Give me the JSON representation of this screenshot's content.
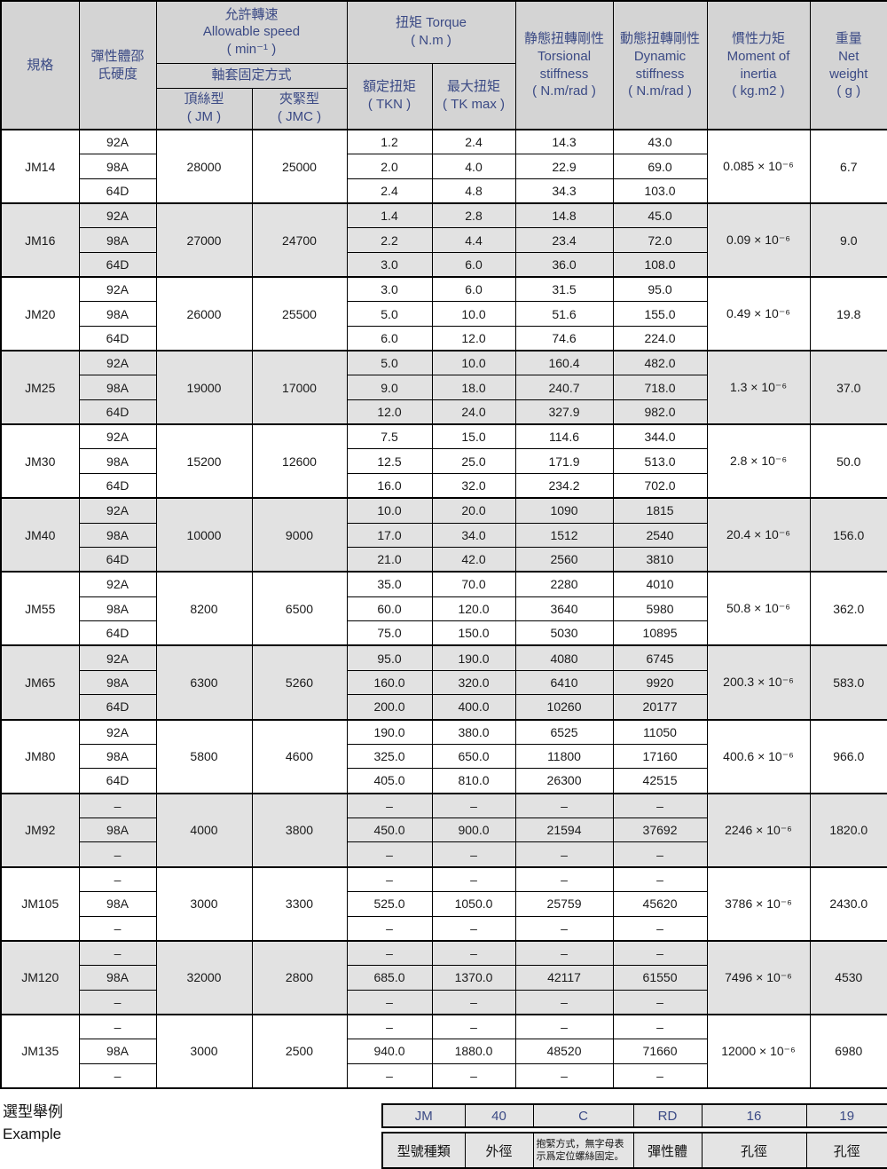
{
  "colors": {
    "header_text": "#3b4a85",
    "header_bg": "#d4d4d4",
    "band_bg": "#e2e2e2",
    "border": "#000000"
  },
  "header": {
    "spec": "規格",
    "hardness": "彈性體邵\n氏硬度",
    "speed_group": "允許轉速\nAllowable speed\n( min⁻¹ )",
    "fixation": "軸套固定方式",
    "jm_type": "頂絲型\n( JM )",
    "jmc_type": "夾緊型\n( JMC )",
    "torque_group": "扭矩  Torque\n( N.m )",
    "tkn": "額定扭矩\n( TKN )",
    "tkmax": "最大扭矩\n( TK max )",
    "torsional": "静態扭轉剛性\nTorsional\nstiffness\n( N.m/rad )",
    "dynamic": "動態扭轉剛性\nDynamic\nstiffness\n( N.m/rad )",
    "inertia": "慣性力矩\nMoment of\ninertia\n( kg.m2 )",
    "weight": "重量\nNet\nweight\n( g )"
  },
  "rows": [
    {
      "model": "JM14",
      "jm": "28000",
      "jmc": "25000",
      "inertia": "0.085 × 10⁻⁶",
      "weight": "6.7",
      "subs": [
        {
          "hard": "92A",
          "tkn": "1.2",
          "tkmax": "2.4",
          "ts": "14.3",
          "ds": "43.0"
        },
        {
          "hard": "98A",
          "tkn": "2.0",
          "tkmax": "4.0",
          "ts": "22.9",
          "ds": "69.0"
        },
        {
          "hard": "64D",
          "tkn": "2.4",
          "tkmax": "4.8",
          "ts": "34.3",
          "ds": "103.0"
        }
      ]
    },
    {
      "model": "JM16",
      "jm": "27000",
      "jmc": "24700",
      "inertia": "0.09 × 10⁻⁶",
      "weight": "9.0",
      "subs": [
        {
          "hard": "92A",
          "tkn": "1.4",
          "tkmax": "2.8",
          "ts": "14.8",
          "ds": "45.0"
        },
        {
          "hard": "98A",
          "tkn": "2.2",
          "tkmax": "4.4",
          "ts": "23.4",
          "ds": "72.0"
        },
        {
          "hard": "64D",
          "tkn": "3.0",
          "tkmax": "6.0",
          "ts": "36.0",
          "ds": "108.0"
        }
      ]
    },
    {
      "model": "JM20",
      "jm": "26000",
      "jmc": "25500",
      "inertia": "0.49 × 10⁻⁶",
      "weight": "19.8",
      "subs": [
        {
          "hard": "92A",
          "tkn": "3.0",
          "tkmax": "6.0",
          "ts": "31.5",
          "ds": "95.0"
        },
        {
          "hard": "98A",
          "tkn": "5.0",
          "tkmax": "10.0",
          "ts": "51.6",
          "ds": "155.0"
        },
        {
          "hard": "64D",
          "tkn": "6.0",
          "tkmax": "12.0",
          "ts": "74.6",
          "ds": "224.0"
        }
      ]
    },
    {
      "model": "JM25",
      "jm": "19000",
      "jmc": "17000",
      "inertia": "1.3 × 10⁻⁶",
      "weight": "37.0",
      "subs": [
        {
          "hard": "92A",
          "tkn": "5.0",
          "tkmax": "10.0",
          "ts": "160.4",
          "ds": "482.0"
        },
        {
          "hard": "98A",
          "tkn": "9.0",
          "tkmax": "18.0",
          "ts": "240.7",
          "ds": "718.0"
        },
        {
          "hard": "64D",
          "tkn": "12.0",
          "tkmax": "24.0",
          "ts": "327.9",
          "ds": "982.0"
        }
      ]
    },
    {
      "model": "JM30",
      "jm": "15200",
      "jmc": "12600",
      "inertia": "2.8 × 10⁻⁶",
      "weight": "50.0",
      "subs": [
        {
          "hard": "92A",
          "tkn": "7.5",
          "tkmax": "15.0",
          "ts": "114.6",
          "ds": "344.0"
        },
        {
          "hard": "98A",
          "tkn": "12.5",
          "tkmax": "25.0",
          "ts": "171.9",
          "ds": "513.0"
        },
        {
          "hard": "64D",
          "tkn": "16.0",
          "tkmax": "32.0",
          "ts": "234.2",
          "ds": "702.0"
        }
      ]
    },
    {
      "model": "JM40",
      "jm": "10000",
      "jmc": "9000",
      "inertia": "20.4 × 10⁻⁶",
      "weight": "156.0",
      "subs": [
        {
          "hard": "92A",
          "tkn": "10.0",
          "tkmax": "20.0",
          "ts": "1090",
          "ds": "1815"
        },
        {
          "hard": "98A",
          "tkn": "17.0",
          "tkmax": "34.0",
          "ts": "1512",
          "ds": "2540"
        },
        {
          "hard": "64D",
          "tkn": "21.0",
          "tkmax": "42.0",
          "ts": "2560",
          "ds": "3810"
        }
      ]
    },
    {
      "model": "JM55",
      "jm": "8200",
      "jmc": "6500",
      "inertia": "50.8 × 10⁻⁶",
      "weight": "362.0",
      "subs": [
        {
          "hard": "92A",
          "tkn": "35.0",
          "tkmax": "70.0",
          "ts": "2280",
          "ds": "4010"
        },
        {
          "hard": "98A",
          "tkn": "60.0",
          "tkmax": "120.0",
          "ts": "3640",
          "ds": "5980"
        },
        {
          "hard": "64D",
          "tkn": "75.0",
          "tkmax": "150.0",
          "ts": "5030",
          "ds": "10895"
        }
      ]
    },
    {
      "model": "JM65",
      "jm": "6300",
      "jmc": "5260",
      "inertia": "200.3 × 10⁻⁶",
      "weight": "583.0",
      "subs": [
        {
          "hard": "92A",
          "tkn": "95.0",
          "tkmax": "190.0",
          "ts": "4080",
          "ds": "6745"
        },
        {
          "hard": "98A",
          "tkn": "160.0",
          "tkmax": "320.0",
          "ts": "6410",
          "ds": "9920"
        },
        {
          "hard": "64D",
          "tkn": "200.0",
          "tkmax": "400.0",
          "ts": "10260",
          "ds": "20177"
        }
      ]
    },
    {
      "model": "JM80",
      "jm": "5800",
      "jmc": "4600",
      "inertia": "400.6 × 10⁻⁶",
      "weight": "966.0",
      "subs": [
        {
          "hard": "92A",
          "tkn": "190.0",
          "tkmax": "380.0",
          "ts": "6525",
          "ds": "11050"
        },
        {
          "hard": "98A",
          "tkn": "325.0",
          "tkmax": "650.0",
          "ts": "11800",
          "ds": "17160"
        },
        {
          "hard": "64D",
          "tkn": "405.0",
          "tkmax": "810.0",
          "ts": "26300",
          "ds": "42515"
        }
      ]
    },
    {
      "model": "JM92",
      "jm": "4000",
      "jmc": "3800",
      "inertia": "2246 × 10⁻⁶",
      "weight": "1820.0",
      "subs": [
        {
          "hard": "–",
          "tkn": "–",
          "tkmax": "–",
          "ts": "–",
          "ds": "–"
        },
        {
          "hard": "98A",
          "tkn": "450.0",
          "tkmax": "900.0",
          "ts": "21594",
          "ds": "37692"
        },
        {
          "hard": "–",
          "tkn": "–",
          "tkmax": "–",
          "ts": "–",
          "ds": "–"
        }
      ]
    },
    {
      "model": "JM105",
      "jm": "3000",
      "jmc": "3300",
      "inertia": "3786 × 10⁻⁶",
      "weight": "2430.0",
      "subs": [
        {
          "hard": "–",
          "tkn": "–",
          "tkmax": "–",
          "ts": "–",
          "ds": "–"
        },
        {
          "hard": "98A",
          "tkn": "525.0",
          "tkmax": "1050.0",
          "ts": "25759",
          "ds": "45620"
        },
        {
          "hard": "–",
          "tkn": "–",
          "tkmax": "–",
          "ts": "–",
          "ds": "–"
        }
      ]
    },
    {
      "model": "JM120",
      "jm": "32000",
      "jmc": "2800",
      "inertia": "7496 × 10⁻⁶",
      "weight": "4530",
      "subs": [
        {
          "hard": "–",
          "tkn": "–",
          "tkmax": "–",
          "ts": "–",
          "ds": "–"
        },
        {
          "hard": "98A",
          "tkn": "685.0",
          "tkmax": "1370.0",
          "ts": "42117",
          "ds": "61550"
        },
        {
          "hard": "–",
          "tkn": "–",
          "tkmax": "–",
          "ts": "–",
          "ds": "–"
        }
      ]
    },
    {
      "model": "JM135",
      "jm": "3000",
      "jmc": "2500",
      "inertia": "12000 × 10⁻⁶",
      "weight": "6980",
      "subs": [
        {
          "hard": "–",
          "tkn": "–",
          "tkmax": "–",
          "ts": "–",
          "ds": "–"
        },
        {
          "hard": "98A",
          "tkn": "940.0",
          "tkmax": "1880.0",
          "ts": "48520",
          "ds": "71660"
        },
        {
          "hard": "–",
          "tkn": "–",
          "tkmax": "–",
          "ts": "–",
          "ds": "–"
        }
      ]
    }
  ],
  "example": {
    "caption_zh": "選型舉例",
    "caption_en": "Example",
    "codes": [
      "JM",
      "40",
      "C",
      "RD",
      "16",
      "19"
    ],
    "labels": [
      "型號種類",
      "外徑",
      "抱緊方式，無字母表\n示爲定位螺絲固定。",
      "彈性體",
      "孔徑",
      "孔徑"
    ]
  }
}
